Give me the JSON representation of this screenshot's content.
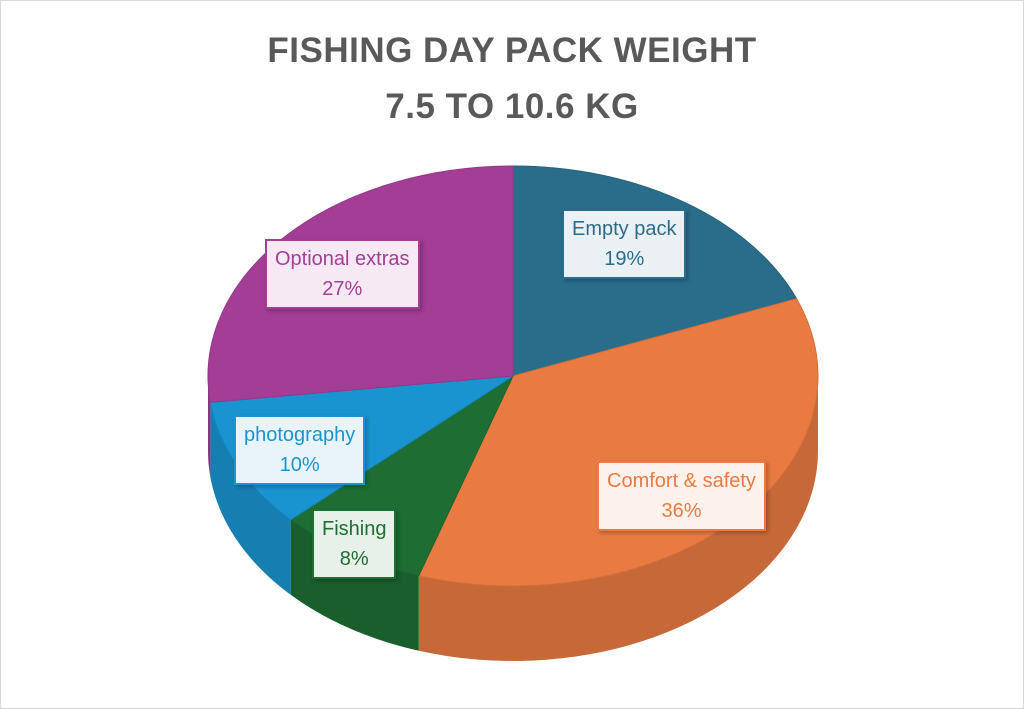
{
  "chart_data": {
    "type": "pie",
    "title": "FISHING DAY PACK WEIGHT",
    "subtitle": "7.5 TO 10.6 KG",
    "three_d": true,
    "start_angle": "12 o'clock, clockwise",
    "slices": [
      {
        "label": "Empty pack",
        "value": 19,
        "percent_label": "19%",
        "color": "#2a6d8a",
        "label_bg": "#eaf0f3"
      },
      {
        "label": "Comfort & safety",
        "value": 36,
        "percent_label": "36%",
        "color": "#e97a42",
        "label_bg": "#fdf1eb"
      },
      {
        "label": "Fishing",
        "value": 8,
        "percent_label": "8%",
        "color": "#1e6e33",
        "label_bg": "#e8f0ea"
      },
      {
        "label": "photography",
        "value": 10,
        "percent_label": "10%",
        "color": "#1a94d0",
        "label_bg": "#e8f4fa"
      },
      {
        "label": "Optional extras",
        "value": 27,
        "percent_label": "27%",
        "color": "#a43d96",
        "label_bg": "#f6e9f4"
      }
    ]
  }
}
